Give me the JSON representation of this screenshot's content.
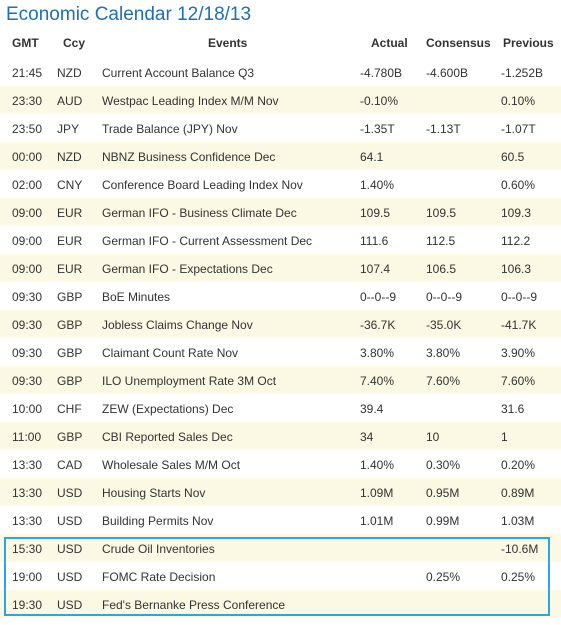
{
  "title": "Economic Calendar 12/18/13",
  "columns": {
    "gmt": "GMT",
    "ccy": "Ccy",
    "events": "Events",
    "actual": "Actual",
    "consensus": "Consensus",
    "previous": "Previous"
  },
  "rows": [
    {
      "gmt": "21:45",
      "ccy": "NZD",
      "event": "Current Account Balance Q3",
      "actual": "-4.780B",
      "consensus": "-4.600B",
      "previous": "-1.252B"
    },
    {
      "gmt": "23:30",
      "ccy": "AUD",
      "event": "Westpac Leading Index M/M Nov",
      "actual": "-0.10%",
      "consensus": "",
      "previous": "0.10%"
    },
    {
      "gmt": "23:50",
      "ccy": "JPY",
      "event": "Trade Balance (JPY) Nov",
      "actual": "-1.35T",
      "consensus": "-1.13T",
      "previous": "-1.07T"
    },
    {
      "gmt": "00:00",
      "ccy": "NZD",
      "event": "NBNZ Business Confidence Dec",
      "actual": "64.1",
      "consensus": "",
      "previous": "60.5"
    },
    {
      "gmt": "02:00",
      "ccy": "CNY",
      "event": "Conference Board Leading Index Nov",
      "actual": "1.40%",
      "consensus": "",
      "previous": "0.60%"
    },
    {
      "gmt": "09:00",
      "ccy": "EUR",
      "event": "German IFO - Business Climate Dec",
      "actual": "109.5",
      "consensus": "109.5",
      "previous": "109.3"
    },
    {
      "gmt": "09:00",
      "ccy": "EUR",
      "event": "German IFO - Current Assessment Dec",
      "actual": "111.6",
      "consensus": "112.5",
      "previous": "112.2"
    },
    {
      "gmt": "09:00",
      "ccy": "EUR",
      "event": "German IFO - Expectations Dec",
      "actual": "107.4",
      "consensus": "106.5",
      "previous": "106.3"
    },
    {
      "gmt": "09:30",
      "ccy": "GBP",
      "event": "BoE Minutes",
      "actual": "0--0--9",
      "consensus": "0--0--9",
      "previous": "0--0--9"
    },
    {
      "gmt": "09:30",
      "ccy": "GBP",
      "event": "Jobless Claims Change Nov",
      "actual": "-36.7K",
      "consensus": "-35.0K",
      "previous": "-41.7K"
    },
    {
      "gmt": "09:30",
      "ccy": "GBP",
      "event": "Claimant Count Rate Nov",
      "actual": "3.80%",
      "consensus": "3.80%",
      "previous": "3.90%"
    },
    {
      "gmt": "09:30",
      "ccy": "GBP",
      "event": "ILO Unemployment Rate 3M Oct",
      "actual": "7.40%",
      "consensus": "7.60%",
      "previous": "7.60%"
    },
    {
      "gmt": "10:00",
      "ccy": "CHF",
      "event": "ZEW (Expectations) Dec",
      "actual": "39.4",
      "consensus": "",
      "previous": "31.6"
    },
    {
      "gmt": "11:00",
      "ccy": "GBP",
      "event": "CBI Reported Sales Dec",
      "actual": "34",
      "consensus": "10",
      "previous": "1"
    },
    {
      "gmt": "13:30",
      "ccy": "CAD",
      "event": "Wholesale Sales M/M Oct",
      "actual": "1.40%",
      "consensus": "0.30%",
      "previous": "0.20%"
    },
    {
      "gmt": "13:30",
      "ccy": "USD",
      "event": "Housing Starts Nov",
      "actual": "1.09M",
      "consensus": "0.95M",
      "previous": "0.89M"
    },
    {
      "gmt": "13:30",
      "ccy": "USD",
      "event": "Building Permits Nov",
      "actual": "1.01M",
      "consensus": "0.99M",
      "previous": "1.03M"
    },
    {
      "gmt": "15:30",
      "ccy": "USD",
      "event": "Crude Oil Inventories",
      "actual": "",
      "consensus": "",
      "previous": "-10.6M"
    },
    {
      "gmt": "19:00",
      "ccy": "USD",
      "event": "FOMC Rate Decision",
      "actual": "",
      "consensus": "0.25%",
      "previous": "0.25%"
    },
    {
      "gmt": "19:30",
      "ccy": "USD",
      "event": "Fed's Bernanke Press Conference",
      "actual": "",
      "consensus": "",
      "previous": ""
    }
  ],
  "colors": {
    "title": "#1f6fb5",
    "alt_row": "#fbf8e3",
    "highlight_border": "#29a8e0"
  }
}
